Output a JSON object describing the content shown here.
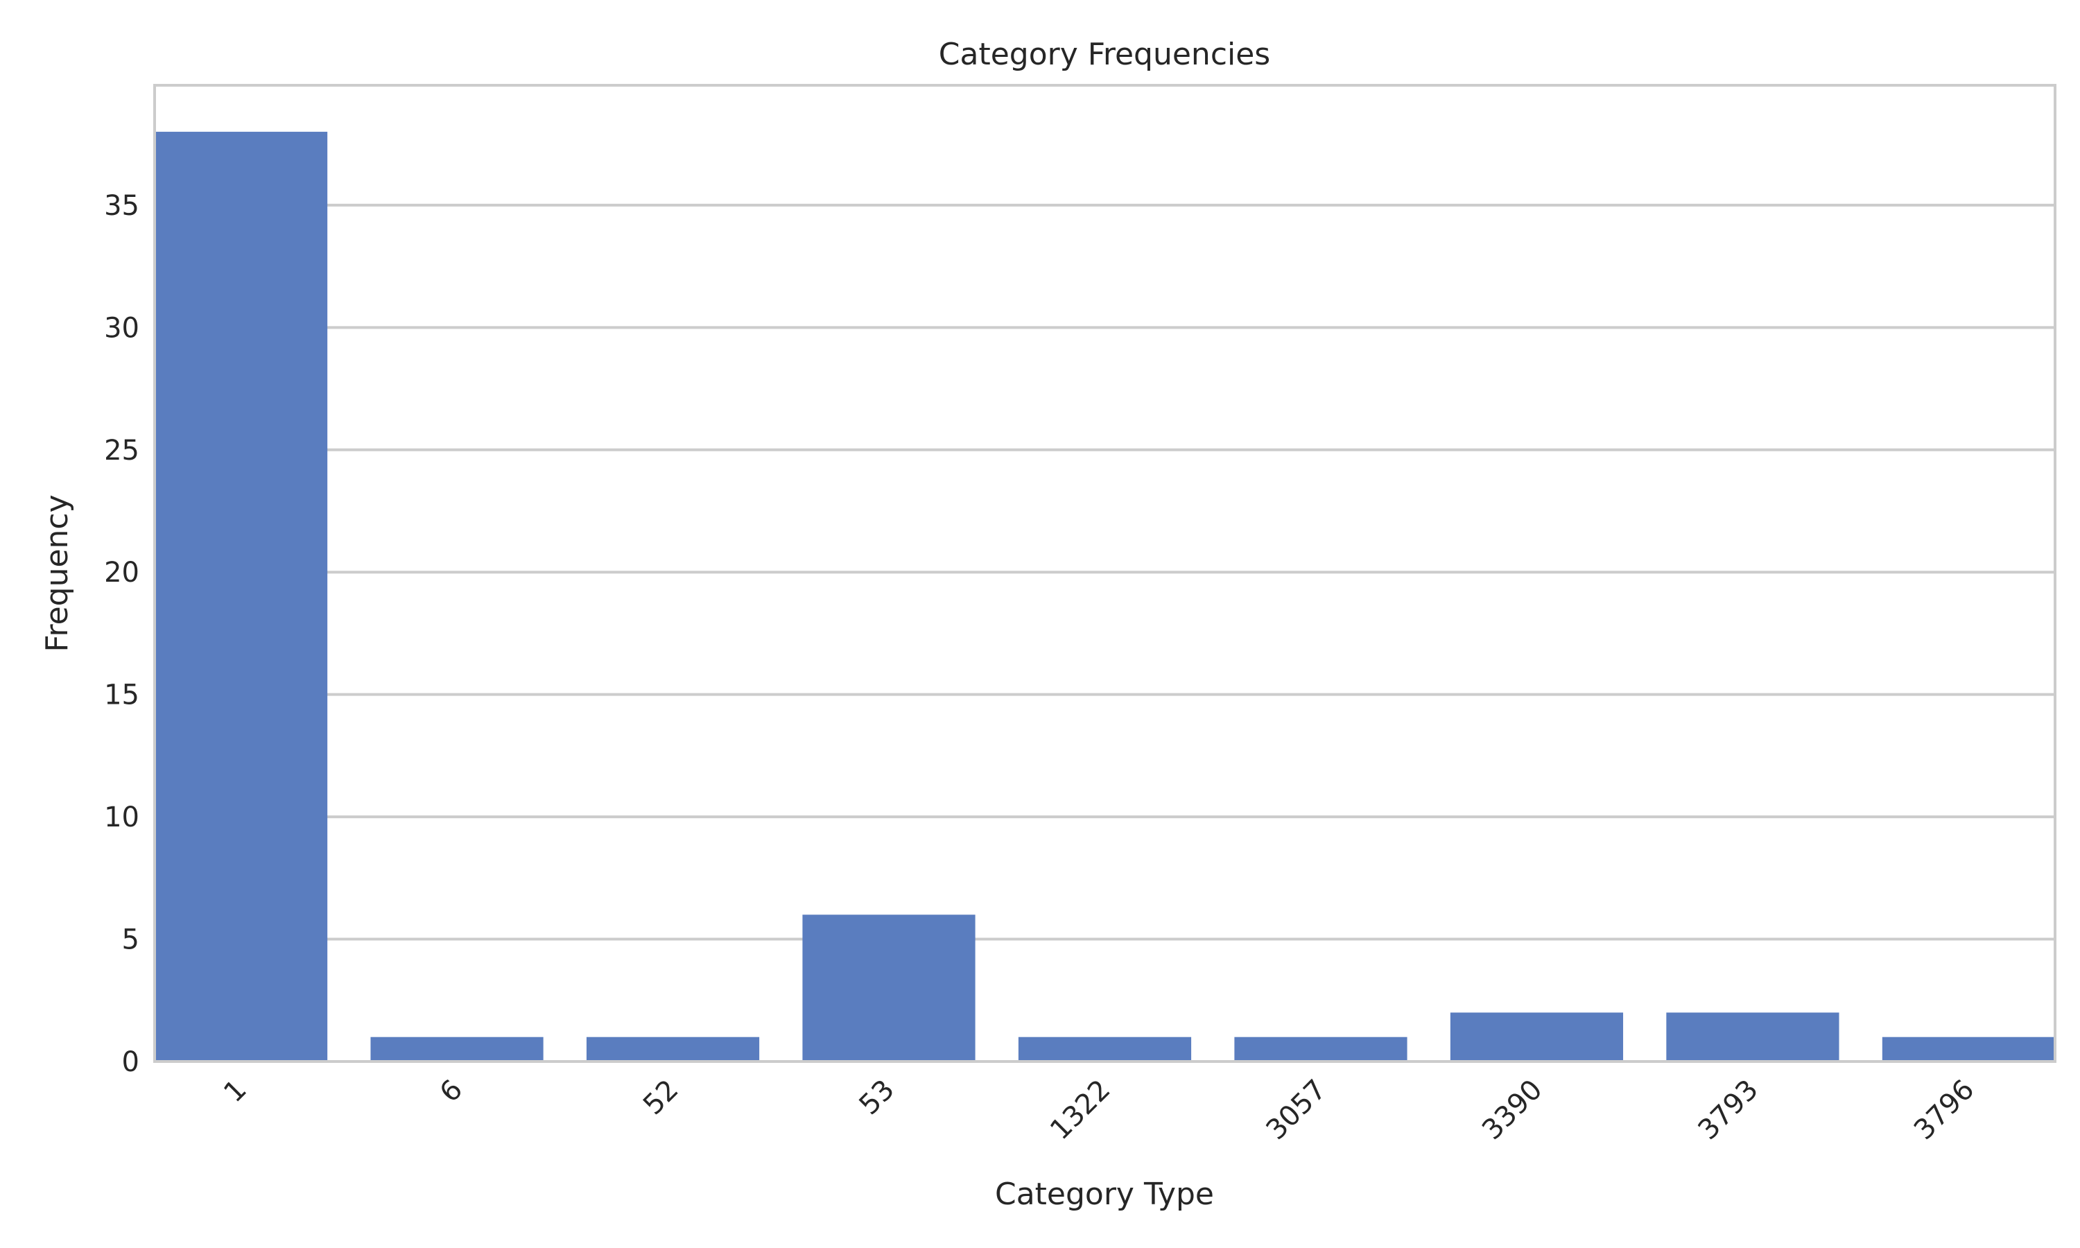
{
  "chart_data": {
    "type": "bar",
    "title": "Category Frequencies",
    "xlabel": "Category Type",
    "ylabel": "Frequency",
    "categories": [
      "1",
      "6",
      "52",
      "53",
      "1322",
      "3057",
      "3390",
      "3793",
      "3796"
    ],
    "values": [
      38,
      1,
      1,
      6,
      1,
      1,
      2,
      2,
      1
    ],
    "ylim": [
      0,
      39.9
    ],
    "yticks": [
      0,
      5,
      10,
      15,
      20,
      25,
      30,
      35
    ],
    "grid": true,
    "bar_color": "#5a7dbf",
    "grid_color": "#cccccc",
    "frame_color": "#cccccc",
    "text_color": "#262626"
  }
}
